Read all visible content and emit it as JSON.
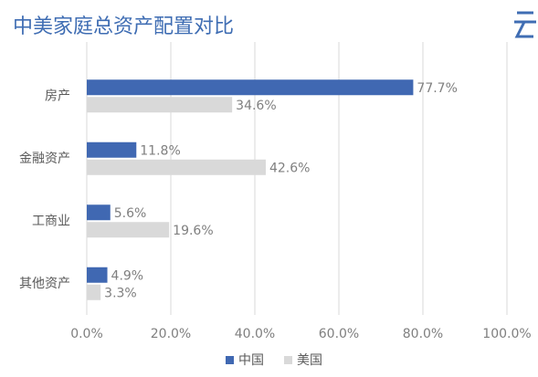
{
  "chart_data": {
    "type": "hbar",
    "title": "中美家庭总资产配置对比",
    "categories": [
      "房产",
      "金融资产",
      "工商业",
      "其他资产"
    ],
    "series": [
      {
        "name": "中国",
        "color": "#4068b2",
        "values": [
          77.7,
          11.8,
          5.6,
          4.9
        ],
        "value_labels": [
          "77.7%",
          "11.8%",
          "5.6%",
          "4.9%"
        ]
      },
      {
        "name": "美国",
        "color": "#d9d9d9",
        "values": [
          34.6,
          42.6,
          19.6,
          3.3
        ],
        "value_labels": [
          "34.6%",
          "42.6%",
          "19.6%",
          "3.3%"
        ]
      }
    ],
    "xlim": [
      0,
      100
    ],
    "xticks": [
      {
        "value": 0,
        "label": "0.0%"
      },
      {
        "value": 20,
        "label": "20.0%"
      },
      {
        "value": 40,
        "label": "40.0%"
      },
      {
        "value": 60,
        "label": "60.0%"
      },
      {
        "value": 80,
        "label": "80.0%"
      },
      {
        "value": 100,
        "label": "100.0%"
      }
    ],
    "grid": true,
    "legend": "bottom"
  }
}
